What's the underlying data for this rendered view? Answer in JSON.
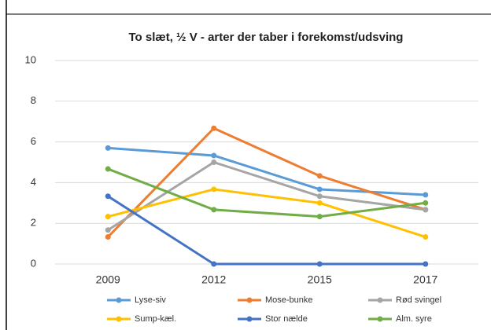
{
  "chart_data": {
    "type": "line",
    "title": "To slæt, ½ V - arter der taber i forekomst/udsving",
    "categories": [
      "2009",
      "2012",
      "2015",
      "2017"
    ],
    "series": [
      {
        "name": "Lyse-siv",
        "color": "#5b9bd5",
        "values": [
          5.7,
          5.33,
          3.67,
          3.4
        ]
      },
      {
        "name": "Mose-bunke",
        "color": "#ed7d31",
        "values": [
          1.33,
          6.67,
          4.33,
          2.67
        ]
      },
      {
        "name": "Rød svingel",
        "color": "#a5a5a5",
        "values": [
          1.67,
          5.0,
          3.33,
          2.67
        ]
      },
      {
        "name": "Sump-kæl.",
        "color": "#ffc000",
        "values": [
          2.33,
          3.67,
          3.0,
          1.33
        ]
      },
      {
        "name": "Stor nælde",
        "color": "#4472c4",
        "values": [
          3.33,
          0,
          0,
          0
        ]
      },
      {
        "name": "Alm. syre",
        "color": "#70ad47",
        "values": [
          4.67,
          2.67,
          2.33,
          3.0
        ]
      }
    ],
    "ylim": [
      0,
      10
    ],
    "yticks": [
      0,
      2,
      4,
      6,
      8,
      10
    ],
    "grid": true
  }
}
